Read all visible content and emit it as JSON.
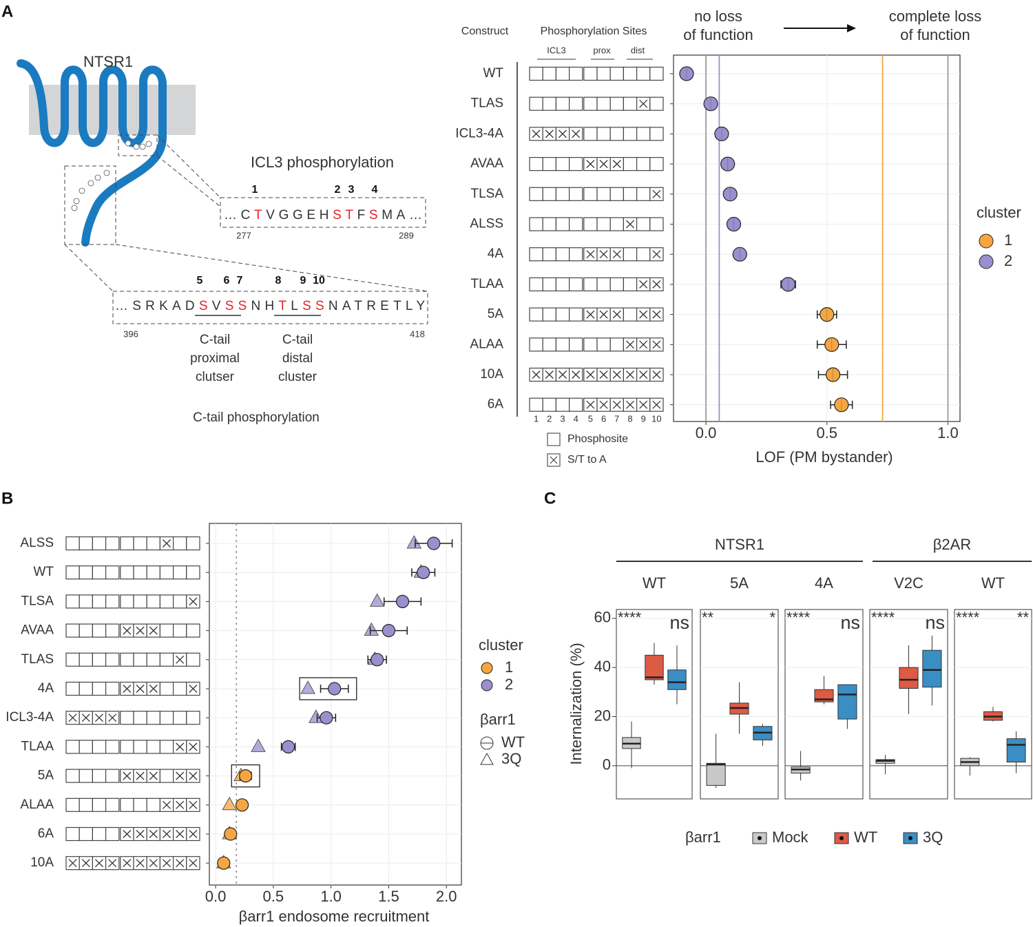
{
  "panels": [
    "A",
    "B",
    "C"
  ],
  "diagram": {
    "receptor": "NTSR1",
    "icl3_title": "ICL3 phosphorylation",
    "icl3_sites": [
      1,
      2,
      3,
      4
    ],
    "icl3_sequence": [
      {
        "text": "…C",
        "color": "#333333"
      },
      {
        "text": "T",
        "color": "#e0242b"
      },
      {
        "text": "VGGEH",
        "color": "#333333"
      },
      {
        "text": "ST",
        "color": "#e0242b"
      },
      {
        "text": "F",
        "color": "#333333"
      },
      {
        "text": "S",
        "color": "#e0242b"
      },
      {
        "text": "MA…",
        "color": "#333333"
      }
    ],
    "icl3_range": [
      277,
      289
    ],
    "ctail_sites": [
      5,
      6,
      7,
      8,
      9,
      10
    ],
    "ctail_sequence": [
      {
        "text": "…SRKAD",
        "color": "#333333"
      },
      {
        "text": "S",
        "color": "#e0242b"
      },
      {
        "text": "V",
        "color": "#333333"
      },
      {
        "text": "SS",
        "color": "#e0242b"
      },
      {
        "text": "NH",
        "color": "#333333"
      },
      {
        "text": "T",
        "color": "#e0242b"
      },
      {
        "text": "L",
        "color": "#333333"
      },
      {
        "text": "SS",
        "color": "#e0242b"
      },
      {
        "text": "NATRETLY",
        "color": "#333333"
      }
    ],
    "ctail_range": [
      396,
      418
    ],
    "proximal_label": [
      "C-tail",
      "proximal",
      "clutser"
    ],
    "distal_label": [
      "C-tail",
      "distal",
      "cluster"
    ],
    "ctail_title": "C-tail phosphorylation"
  },
  "chart_data": [
    {
      "type": "dot",
      "header_construct": "Construct",
      "header_sites": "Phosphorylation Sites",
      "site_groups": [
        "ICL3",
        "prox",
        "dist"
      ],
      "site_numbers": [
        1,
        2,
        3,
        4,
        5,
        6,
        7,
        8,
        9,
        10
      ],
      "matrix_legend": [
        "Phosphosite",
        "S/T to A"
      ],
      "annotation_left": [
        "no loss",
        "of function"
      ],
      "annotation_right": [
        "complete loss",
        "of function"
      ],
      "xlabel": "LOF (PM bystander)",
      "xlim": [
        -0.134,
        1.05
      ],
      "xticks": [
        {
          "value": 0,
          "label": "0.0"
        },
        {
          "value": 0.5,
          "label": "0.5"
        },
        {
          "value": 1,
          "label": "1.0"
        }
      ],
      "reference_lines": [
        {
          "value": 0,
          "color": "#999999"
        },
        {
          "value": 1,
          "color": "#999999"
        },
        {
          "value": 0.055,
          "color": "#9b8fcf"
        },
        {
          "value": 0.73,
          "color": "#f5a640"
        }
      ],
      "categories": [
        "WT",
        "TLAS",
        "ICL3-4A",
        "AVAA",
        "TLSA",
        "ALSS",
        "4A",
        "TLAA",
        "5A",
        "ALAA",
        "10A",
        "6A"
      ],
      "values": [
        -0.08,
        0.02,
        0.065,
        0.09,
        0.1,
        0.115,
        0.14,
        0.34,
        0.5,
        0.52,
        0.525,
        0.56
      ],
      "errors": [
        0.01,
        0.01,
        0.01,
        0.01,
        0.01,
        0.01,
        0.01,
        0.03,
        0.04,
        0.06,
        0.06,
        0.045
      ],
      "cluster": [
        "2",
        "2",
        "2",
        "2",
        "2",
        "2",
        "2",
        "2",
        "1",
        "1",
        "1",
        "1"
      ],
      "mutations": [
        [],
        [
          9
        ],
        [
          1,
          2,
          3,
          4
        ],
        [
          5,
          6,
          7
        ],
        [
          10
        ],
        [
          8
        ],
        [
          5,
          6,
          7,
          10
        ],
        [
          9,
          10
        ],
        [
          5,
          6,
          7,
          9,
          10
        ],
        [
          8,
          9,
          10
        ],
        [
          1,
          2,
          3,
          4,
          5,
          6,
          7,
          8,
          9,
          10
        ],
        [
          5,
          6,
          7,
          8,
          9,
          10
        ]
      ],
      "legend_title": "cluster",
      "legend": [
        {
          "name": "1",
          "color": "#f5a640"
        },
        {
          "name": "2",
          "color": "#9b8fcf"
        }
      ]
    },
    {
      "type": "dot",
      "categories": [
        "ALSS",
        "WT",
        "TLSA",
        "AVAA",
        "TLAS",
        "4A",
        "ICL3-4A",
        "TLAA",
        "5A",
        "ALAA",
        "6A",
        "10A"
      ],
      "mutations": [
        [
          8
        ],
        [],
        [
          10
        ],
        [
          5,
          6,
          7
        ],
        [
          9
        ],
        [
          5,
          6,
          7,
          10
        ],
        [
          1,
          2,
          3,
          4
        ],
        [
          9,
          10
        ],
        [
          5,
          6,
          7,
          9,
          10
        ],
        [
          8,
          9,
          10
        ],
        [
          5,
          6,
          7,
          8,
          9,
          10
        ],
        [
          1,
          2,
          3,
          4,
          5,
          6,
          7,
          8,
          9,
          10
        ]
      ],
      "cluster": [
        "2",
        "2",
        "2",
        "2",
        "2",
        "2",
        "2",
        "2",
        "1",
        "1",
        "1",
        "1"
      ],
      "series": [
        {
          "name": "3Q",
          "marker": "triangle",
          "values": [
            1.72,
            1.78,
            1.4,
            1.35,
            1.38,
            0.8,
            0.87,
            0.37,
            0.22,
            0.12,
            0.12,
            0.07
          ]
        },
        {
          "name": "WT",
          "marker": "circle",
          "values": [
            1.89,
            1.8,
            1.62,
            1.5,
            1.4,
            1.03,
            0.96,
            0.63,
            0.26,
            0.23,
            0.13,
            0.07
          ],
          "errors": [
            0.16,
            0.1,
            0.16,
            0.16,
            0.08,
            0.12,
            0.08,
            0.06,
            0.05,
            0.01,
            0.01,
            0.01
          ]
        }
      ],
      "xlim": [
        -0.054,
        2.13
      ],
      "xticks": [
        {
          "value": 0,
          "label": "0.0"
        },
        0.5,
        {
          "value": 1,
          "label": "1.0"
        },
        1.5,
        {
          "value": 2,
          "label": "2.0"
        }
      ],
      "reference_lines": [
        {
          "value": 0.18,
          "color": "#999999"
        }
      ],
      "highlight": [
        "4A",
        "5A"
      ],
      "xlabel": "βarr1 endosome recruitment",
      "legend_title": "cluster",
      "legend": [
        {
          "name": "1",
          "color": "#f5a640"
        },
        {
          "name": "2",
          "color": "#9b8fcf"
        }
      ],
      "marker_legend_title": "βarr1"
    },
    {
      "type": "box",
      "ylabel": "Internalization (%)",
      "ylim": [
        -13.5,
        63.6
      ],
      "yticks": [
        0,
        20,
        40,
        60
      ],
      "series": [
        {
          "name": "Mock",
          "color": "#c8c8c8"
        },
        {
          "name": "WT",
          "color": "#dd5a45"
        },
        {
          "name": "3Q",
          "color": "#3a8ec4"
        }
      ],
      "legend_title": "βarr1",
      "groups": [
        {
          "name": "NTSR1",
          "facets": [
            {
              "name": "WT",
              "significance": [
                "****",
                "ns"
              ],
              "boxes": [
                [
                  -1,
                  7,
                  9,
                  11.5,
                  18
                ],
                [
                  33,
                  35,
                  36,
                  45,
                  50
                ],
                [
                  25,
                  31,
                  34,
                  39,
                  49
                ]
              ]
            },
            {
              "name": "5A",
              "significance": [
                "**",
                "*"
              ],
              "boxes": [
                [
                  -9,
                  -8,
                  0.5,
                  1,
                  13
                ],
                [
                  13,
                  21,
                  23.5,
                  25.5,
                  34
                ],
                [
                  8,
                  10.5,
                  13.5,
                  16,
                  17
                ]
              ]
            },
            {
              "name": "4A",
              "significance": [
                "****",
                "ns"
              ],
              "boxes": [
                [
                  -6,
                  -3,
                  -1.5,
                  -0.5,
                  6
                ],
                [
                  25,
                  26,
                  27,
                  31,
                  36.5
                ],
                [
                  15,
                  19,
                  29,
                  33,
                  33
                ]
              ]
            }
          ]
        },
        {
          "name": "β2AR",
          "facets": [
            {
              "name": "V2C",
              "significance": [
                "****",
                "ns"
              ],
              "boxes": [
                [
                  -3.5,
                  1,
                  2,
                  2.5,
                  4.5
                ],
                [
                  21,
                  31.5,
                  35,
                  40,
                  49
                ],
                [
                  24.5,
                  32,
                  39,
                  47,
                  53
                ]
              ]
            },
            {
              "name": "WT",
              "significance": [
                "****",
                "**"
              ],
              "boxes": [
                [
                  -4,
                  0,
                  1.5,
                  3,
                  3.5
                ],
                [
                  18,
                  18.5,
                  20,
                  22,
                  24
                ],
                [
                  -3,
                  1.5,
                  8.5,
                  11,
                  14
                ]
              ]
            }
          ]
        }
      ]
    }
  ]
}
